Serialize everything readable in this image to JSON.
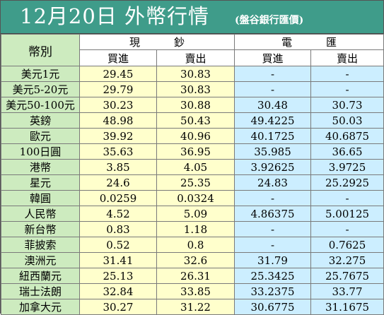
{
  "title": {
    "main": "12月20日 外幣行情",
    "source": "(盤谷銀行匯價)"
  },
  "header": {
    "currency_col": "幣別",
    "cash_group": "現鈔",
    "spot_group": "電匯",
    "buy": "買進",
    "sell": "賣出"
  },
  "colors": {
    "title_bg": "#3f9c8a",
    "name_col_bg": "#cdebbf",
    "cash_col_bg": "#ffffcc",
    "spot_col_bg": "#cceeff"
  },
  "rows": [
    {
      "currency": "美元1元",
      "cash_buy": "29.45",
      "cash_sell": "30.83",
      "spot_buy": "-",
      "spot_sell": "-"
    },
    {
      "currency": "美元5-20元",
      "cash_buy": "29.79",
      "cash_sell": "30.83",
      "spot_buy": "-",
      "spot_sell": "-"
    },
    {
      "currency": "美元50-100元",
      "cash_buy": "30.23",
      "cash_sell": "30.88",
      "spot_buy": "30.48",
      "spot_sell": "30.73"
    },
    {
      "currency": "英鎊",
      "cash_buy": "48.98",
      "cash_sell": "50.43",
      "spot_buy": "49.4225",
      "spot_sell": "50.03"
    },
    {
      "currency": "歐元",
      "cash_buy": "39.92",
      "cash_sell": "40.96",
      "spot_buy": "40.1725",
      "spot_sell": "40.6875"
    },
    {
      "currency": "100日圓",
      "cash_buy": "35.63",
      "cash_sell": "36.95",
      "spot_buy": "35.985",
      "spot_sell": "36.65"
    },
    {
      "currency": "港幣",
      "cash_buy": "3.85",
      "cash_sell": "4.05",
      "spot_buy": "3.92625",
      "spot_sell": "3.9725"
    },
    {
      "currency": "星元",
      "cash_buy": "24.6",
      "cash_sell": "25.35",
      "spot_buy": "24.83",
      "spot_sell": "25.2925"
    },
    {
      "currency": "韓圓",
      "cash_buy": "0.0259",
      "cash_sell": "0.0324",
      "spot_buy": "-",
      "spot_sell": "-"
    },
    {
      "currency": "人民幣",
      "cash_buy": "4.52",
      "cash_sell": "5.09",
      "spot_buy": "4.86375",
      "spot_sell": "5.00125"
    },
    {
      "currency": "新台幣",
      "cash_buy": "0.83",
      "cash_sell": "1.18",
      "spot_buy": "-",
      "spot_sell": "-"
    },
    {
      "currency": "菲披索",
      "cash_buy": "0.52",
      "cash_sell": "0.8",
      "spot_buy": "-",
      "spot_sell": "0.7625"
    },
    {
      "currency": "澳洲元",
      "cash_buy": "31.41",
      "cash_sell": "32.6",
      "spot_buy": "31.79",
      "spot_sell": "32.275"
    },
    {
      "currency": "紐西蘭元",
      "cash_buy": "25.13",
      "cash_sell": "26.31",
      "spot_buy": "25.3425",
      "spot_sell": "25.7675"
    },
    {
      "currency": "瑞士法朗",
      "cash_buy": "32.84",
      "cash_sell": "33.85",
      "spot_buy": "33.2375",
      "spot_sell": "33.77"
    },
    {
      "currency": "加拿大元",
      "cash_buy": "30.27",
      "cash_sell": "31.22",
      "spot_buy": "30.6775",
      "spot_sell": "31.1675"
    }
  ]
}
